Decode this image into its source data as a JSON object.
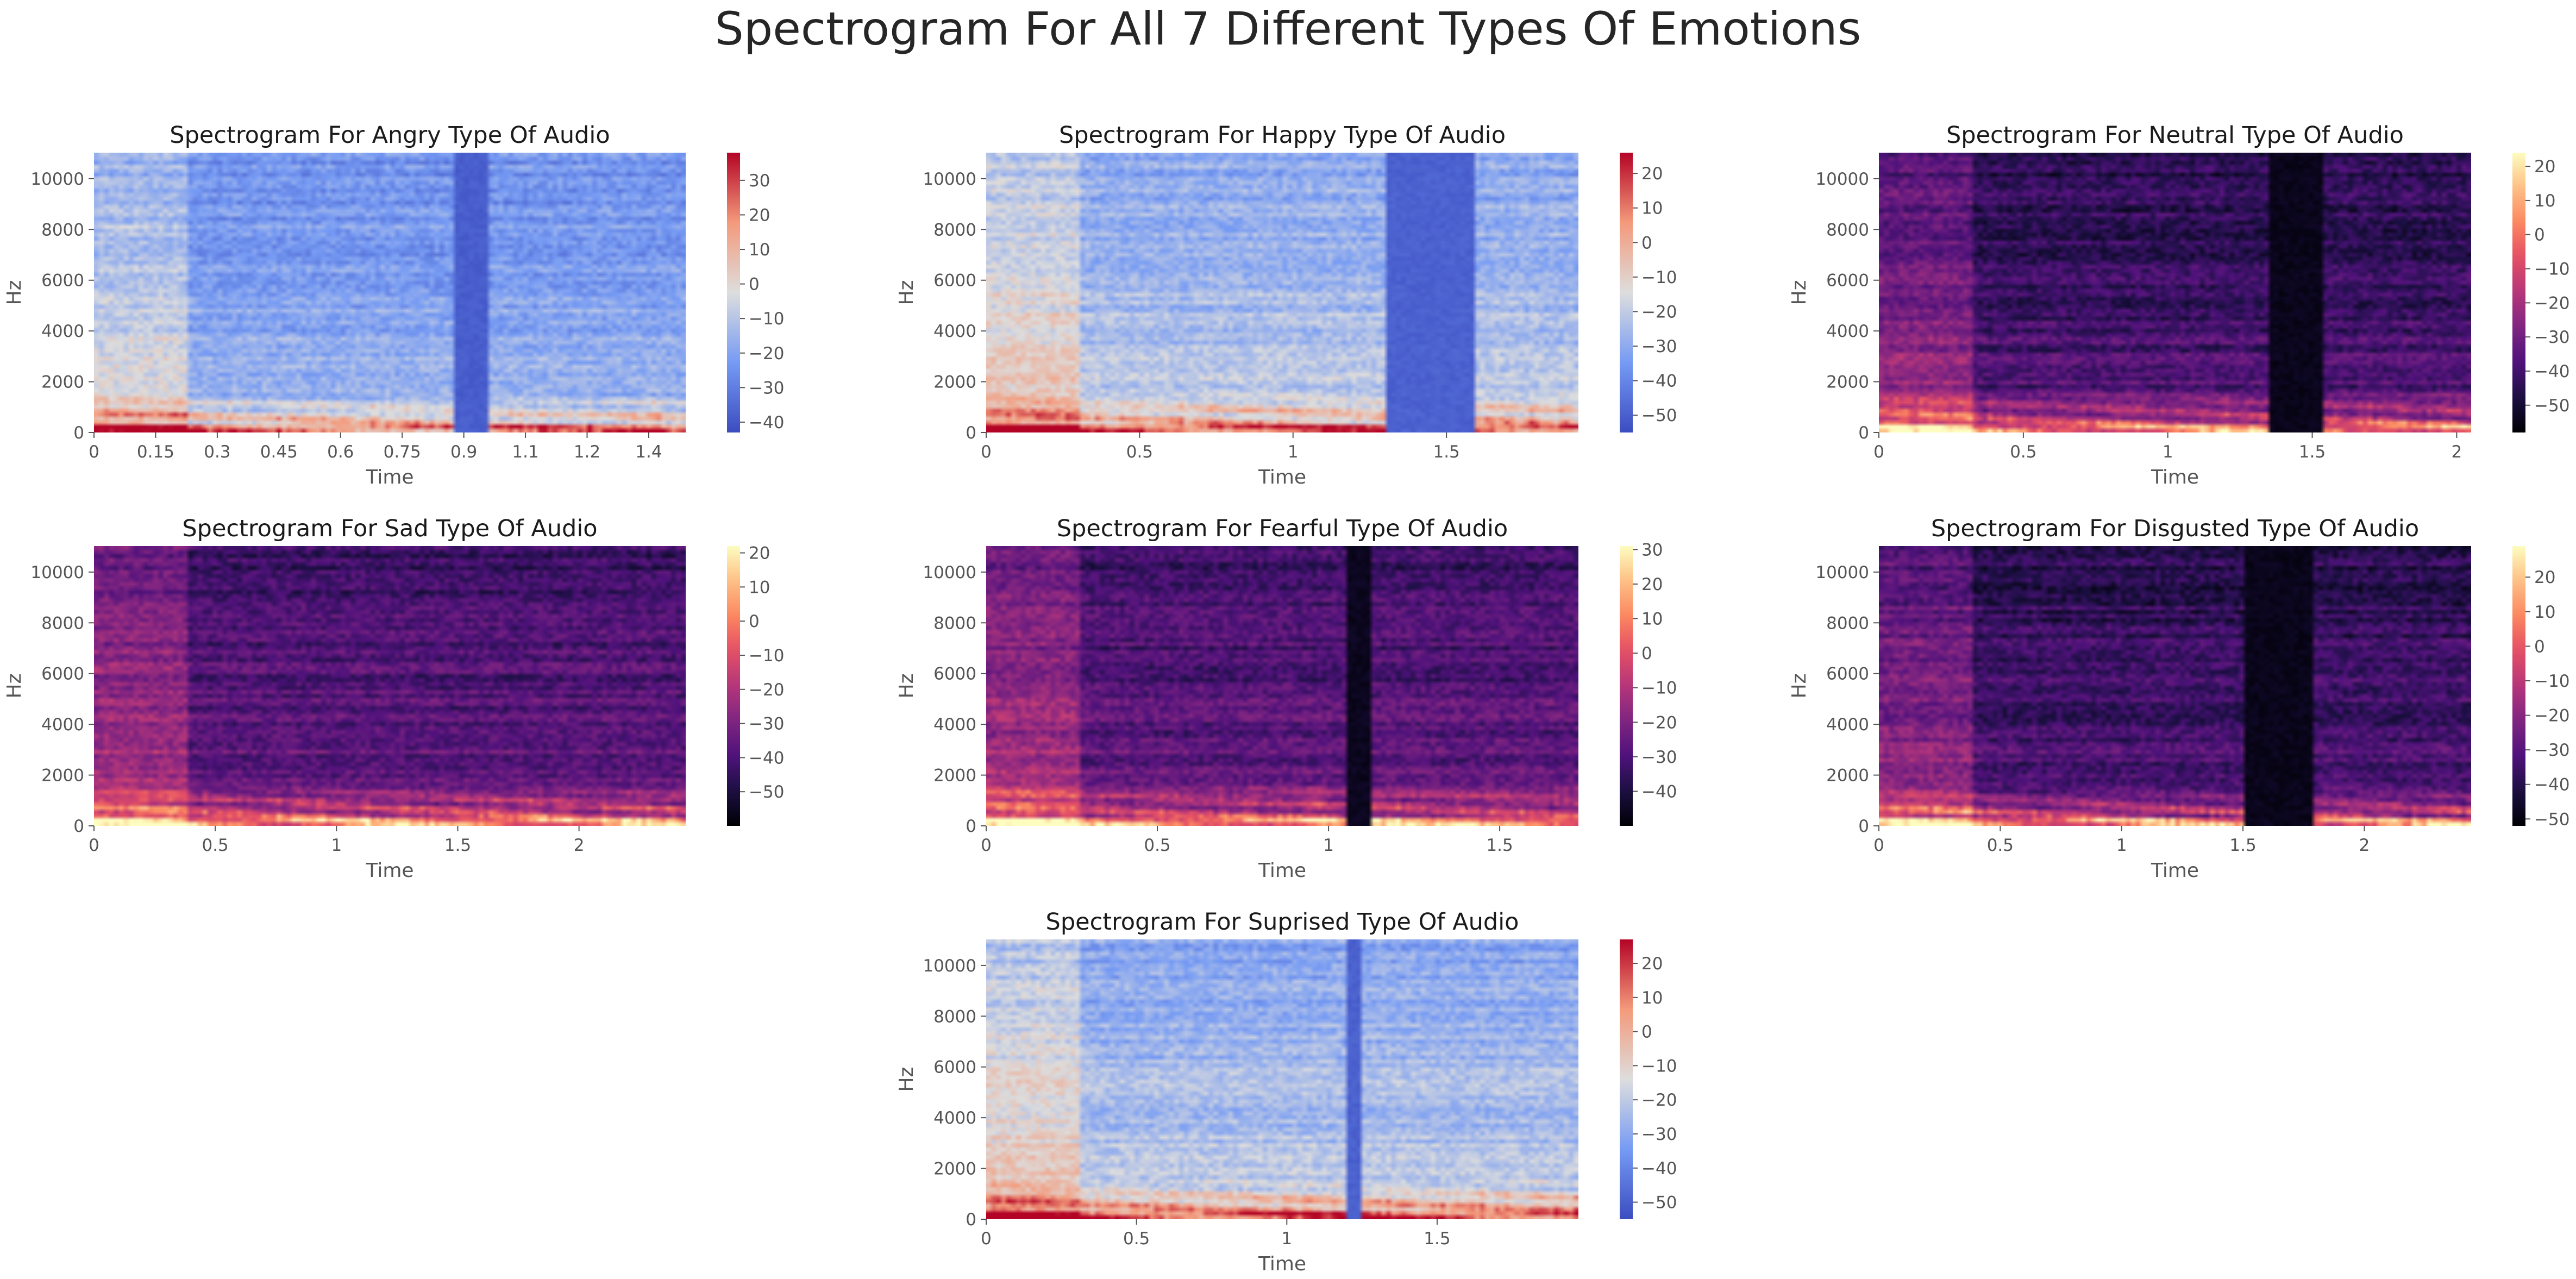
{
  "title": "Spectrogram For All 7 Different Types Of Emotions",
  "chart_data": [
    {
      "type": "heatmap",
      "title": "Spectrogram For Angry Type Of Audio",
      "xlabel": "Time",
      "ylabel": "Hz",
      "colormap": "coolwarm",
      "xlim": [
        0,
        1.44
      ],
      "ylim": [
        0,
        11025
      ],
      "x_ticks": [
        "0",
        "0.15",
        "0.3",
        "0.45",
        "0.6",
        "0.75",
        "0.9",
        "1.1",
        "1.2",
        "1.4"
      ],
      "x_tick_values": [
        0,
        0.15,
        0.3,
        0.45,
        0.6,
        0.75,
        0.9,
        1.05,
        1.2,
        1.35
      ],
      "y_ticks": [
        "0",
        "2000",
        "4000",
        "6000",
        "8000",
        "10000"
      ],
      "y_tick_values": [
        0,
        2000,
        4000,
        6000,
        8000,
        10000
      ],
      "colorbar_ticks": [
        "30",
        "20",
        "10",
        "0",
        "−10",
        "−20",
        "−30",
        "−40"
      ],
      "colorbar_values": [
        30,
        20,
        10,
        0,
        -10,
        -20,
        -30,
        -40
      ],
      "crange": [
        -43,
        38
      ],
      "silence": [
        [
          0.87,
          0.96
        ]
      ],
      "base_level": 0.22
    },
    {
      "type": "heatmap",
      "title": "Spectrogram For Happy Type Of Audio",
      "xlabel": "Time",
      "ylabel": "Hz",
      "colormap": "coolwarm",
      "xlim": [
        0,
        1.93
      ],
      "ylim": [
        0,
        11025
      ],
      "x_ticks": [
        "0",
        "0.5",
        "1",
        "1.5"
      ],
      "x_tick_values": [
        0,
        0.5,
        1,
        1.5
      ],
      "y_ticks": [
        "0",
        "2000",
        "4000",
        "6000",
        "8000",
        "10000"
      ],
      "y_tick_values": [
        0,
        2000,
        4000,
        6000,
        8000,
        10000
      ],
      "colorbar_ticks": [
        "20",
        "10",
        "0",
        "−10",
        "−20",
        "−30",
        "−40",
        "−50"
      ],
      "colorbar_values": [
        20,
        10,
        0,
        -10,
        -20,
        -30,
        -40,
        -50
      ],
      "crange": [
        -55,
        26
      ],
      "silence": [
        [
          1.3,
          1.6
        ]
      ],
      "base_level": 0.3
    },
    {
      "type": "heatmap",
      "title": "Spectrogram For Neutral Type Of Audio",
      "xlabel": "Time",
      "ylabel": "Hz",
      "colormap": "magma",
      "xlim": [
        0,
        2.05
      ],
      "ylim": [
        0,
        11025
      ],
      "x_ticks": [
        "0",
        "0.5",
        "1",
        "1.5",
        "2"
      ],
      "x_tick_values": [
        0,
        0.5,
        1,
        1.5,
        2
      ],
      "y_ticks": [
        "0",
        "2000",
        "4000",
        "6000",
        "8000",
        "10000"
      ],
      "y_tick_values": [
        0,
        2000,
        4000,
        6000,
        8000,
        10000
      ],
      "colorbar_ticks": [
        "20",
        "10",
        "0",
        "−10",
        "−20",
        "−30",
        "−40",
        "−50"
      ],
      "colorbar_values": [
        20,
        10,
        0,
        -10,
        -20,
        -30,
        -40,
        -50
      ],
      "crange": [
        -58,
        24
      ],
      "silence": [
        [
          1.35,
          1.53
        ]
      ],
      "base_level": 0.15
    },
    {
      "type": "heatmap",
      "title": "Spectrogram For Sad Type Of Audio",
      "xlabel": "Time",
      "ylabel": "Hz",
      "colormap": "magma",
      "xlim": [
        0,
        2.44
      ],
      "ylim": [
        0,
        11025
      ],
      "x_ticks": [
        "0",
        "0.5",
        "1",
        "1.5",
        "2"
      ],
      "x_tick_values": [
        0,
        0.5,
        1,
        1.5,
        2
      ],
      "y_ticks": [
        "0",
        "2000",
        "4000",
        "6000",
        "8000",
        "10000"
      ],
      "y_tick_values": [
        0,
        2000,
        4000,
        6000,
        8000,
        10000
      ],
      "colorbar_ticks": [
        "20",
        "10",
        "0",
        "−10",
        "−20",
        "−30",
        "−40",
        "−50"
      ],
      "colorbar_values": [
        20,
        10,
        0,
        -10,
        -20,
        -30,
        -40,
        -50
      ],
      "crange": [
        -60,
        22
      ],
      "silence": [],
      "base_level": 0.2
    },
    {
      "type": "heatmap",
      "title": "Spectrogram For Fearful Type Of Audio",
      "xlabel": "Time",
      "ylabel": "Hz",
      "colormap": "magma",
      "xlim": [
        0,
        1.73
      ],
      "ylim": [
        0,
        11025
      ],
      "x_ticks": [
        "0",
        "0.5",
        "1",
        "1.5"
      ],
      "x_tick_values": [
        0,
        0.5,
        1,
        1.5
      ],
      "y_ticks": [
        "0",
        "2000",
        "4000",
        "6000",
        "8000",
        "10000"
      ],
      "y_tick_values": [
        0,
        2000,
        4000,
        6000,
        8000,
        10000
      ],
      "colorbar_ticks": [
        "30",
        "20",
        "10",
        "0",
        "−10",
        "−20",
        "−30",
        "−40"
      ],
      "colorbar_values": [
        30,
        20,
        10,
        0,
        -10,
        -20,
        -30,
        -40
      ],
      "crange": [
        -50,
        31
      ],
      "silence": [
        [
          1.05,
          1.12
        ]
      ],
      "base_level": 0.2
    },
    {
      "type": "heatmap",
      "title": "Spectrogram For Disgusted Type Of Audio",
      "xlabel": "Time",
      "ylabel": "Hz",
      "colormap": "magma",
      "xlim": [
        0,
        2.44
      ],
      "ylim": [
        0,
        11025
      ],
      "x_ticks": [
        "0",
        "0.5",
        "1",
        "1.5",
        "2"
      ],
      "x_tick_values": [
        0,
        0.5,
        1,
        1.5,
        2
      ],
      "y_ticks": [
        "0",
        "2000",
        "4000",
        "6000",
        "8000",
        "10000"
      ],
      "y_tick_values": [
        0,
        2000,
        4000,
        6000,
        8000,
        10000
      ],
      "colorbar_ticks": [
        "20",
        "10",
        "0",
        "−10",
        "−20",
        "−30",
        "−40",
        "−50"
      ],
      "colorbar_values": [
        20,
        10,
        0,
        -10,
        -20,
        -30,
        -40,
        -50
      ],
      "crange": [
        -52,
        29
      ],
      "silence": [
        [
          1.5,
          1.78
        ]
      ],
      "base_level": 0.15
    },
    {
      "type": "heatmap",
      "title": "Spectrogram For Suprised Type Of Audio",
      "xlabel": "Time",
      "ylabel": "Hz",
      "colormap": "coolwarm",
      "xlim": [
        0,
        1.97
      ],
      "ylim": [
        0,
        11025
      ],
      "x_ticks": [
        "0",
        "0.5",
        "1",
        "1.5"
      ],
      "x_tick_values": [
        0,
        0.5,
        1,
        1.5
      ],
      "y_ticks": [
        "0",
        "2000",
        "4000",
        "6000",
        "8000",
        "10000"
      ],
      "y_tick_values": [
        0,
        2000,
        4000,
        6000,
        8000,
        10000
      ],
      "colorbar_ticks": [
        "20",
        "10",
        "0",
        "−10",
        "−20",
        "−30",
        "−40",
        "−50"
      ],
      "colorbar_values": [
        20,
        10,
        0,
        -10,
        -20,
        -30,
        -40,
        -50
      ],
      "crange": [
        -55,
        27
      ],
      "silence": [
        [
          1.2,
          1.25
        ]
      ],
      "base_level": 0.3
    }
  ]
}
